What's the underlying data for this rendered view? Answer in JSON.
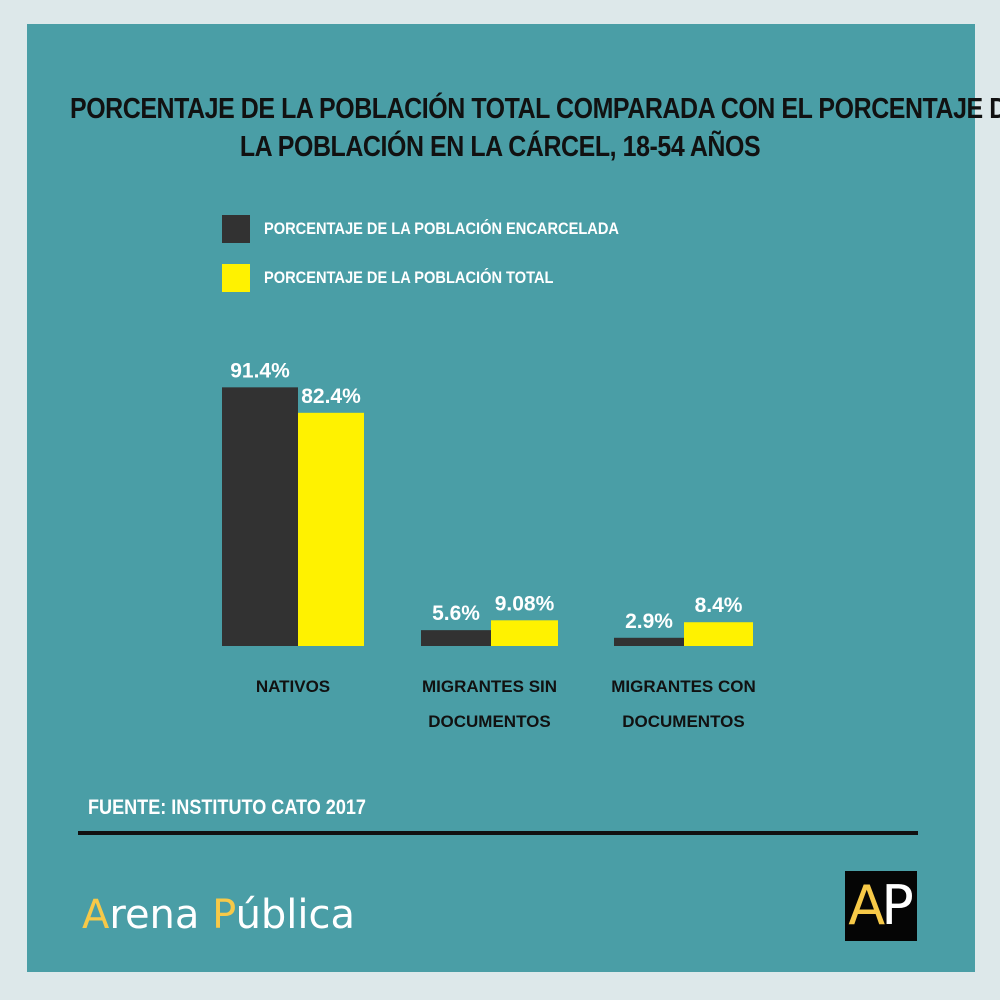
{
  "chart_data": {
    "type": "bar",
    "title": "PORCENTAJE DE LA POBLACIÓN TOTAL COMPARADA CON EL PORCENTAJE DE LA POBLACIÓN EN LA CÁRCEL, 18-54 AÑOS",
    "title_lines": [
      "PORCENTAJE DE LA POBLACIÓN TOTAL COMPARADA CON EL PORCENTAJE DE",
      "LA POBLACIÓN EN LA CÁRCEL, 18-54 AÑOS"
    ],
    "categories": [
      "NATIVOS",
      "MIGRANTES SIN DOCUMENTOS",
      "MIGRANTES CON DOCUMENTOS"
    ],
    "category_lines": [
      [
        "NATIVOS"
      ],
      [
        "MIGRANTES SIN",
        "DOCUMENTOS"
      ],
      [
        "MIGRANTES CON",
        "DOCUMENTOS"
      ]
    ],
    "series": [
      {
        "name": "PORCENTAJE DE LA POBLACIÓN ENCARCELADA",
        "color": "#323232",
        "values": [
          91.4,
          5.6,
          2.9
        ],
        "labels": [
          "91.4%",
          "5.6%",
          "2.9%"
        ]
      },
      {
        "name": "PORCENTAJE DE LA POBLACIÓN TOTAL",
        "color": "#fff200",
        "values": [
          82.4,
          9.08,
          8.4
        ],
        "labels": [
          "82.4%",
          "9.08%",
          "8.4%"
        ]
      }
    ],
    "ylim": [
      0,
      100
    ],
    "grid": false,
    "legend_placement": "top-left",
    "xlabel": "",
    "ylabel": ""
  },
  "footer": {
    "source": "FUENTE: INSTITUTO CATO 2017",
    "brand": "Arena Pública",
    "logo": "AP"
  },
  "colors": {
    "background": "#4a9ea6",
    "accent": "#f7c948"
  }
}
